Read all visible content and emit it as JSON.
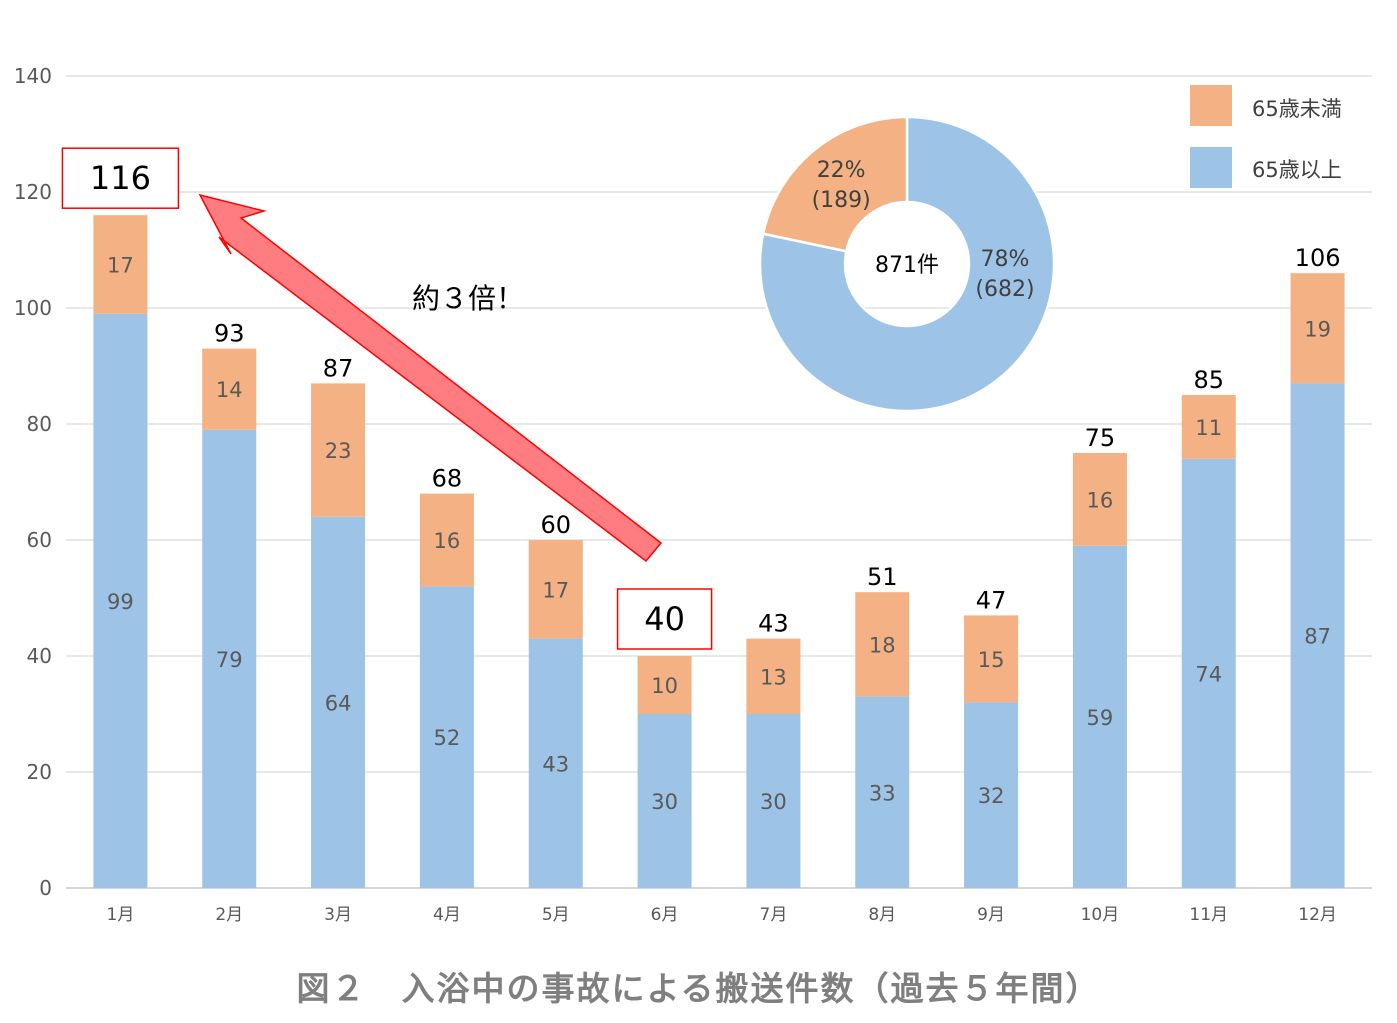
{
  "chart_data": {
    "type": "bar",
    "stacked": true,
    "title": "図２　入浴中の事故による搬送件数（過去５年間）",
    "categories": [
      "1月",
      "2月",
      "3月",
      "4月",
      "5月",
      "6月",
      "7月",
      "8月",
      "9月",
      "10月",
      "11月",
      "12月"
    ],
    "series": [
      {
        "name": "65歳以上",
        "color": "#9dc3e6",
        "values": [
          99,
          79,
          64,
          52,
          43,
          30,
          30,
          33,
          32,
          59,
          74,
          87
        ]
      },
      {
        "name": "65歳未満",
        "color": "#f4b183",
        "values": [
          17,
          14,
          23,
          16,
          17,
          10,
          13,
          18,
          15,
          16,
          11,
          19
        ]
      }
    ],
    "totals": [
      116,
      93,
      87,
      68,
      60,
      40,
      43,
      51,
      47,
      75,
      85,
      106
    ],
    "highlighted_categories": [
      "1月",
      "6月"
    ],
    "ylim": [
      0,
      140
    ],
    "yticks": [
      0,
      20,
      40,
      60,
      80,
      100,
      120,
      140
    ],
    "grid": true,
    "legend": {
      "placement": "top-right",
      "entries": [
        "65歳未満",
        "65歳以上"
      ]
    },
    "annotation": "約３倍！",
    "pie": {
      "center_label": "871件",
      "slices": [
        {
          "name": "65歳以上",
          "percent_label": "78%",
          "count_label": "(682)",
          "value": 682,
          "color": "#9dc3e6"
        },
        {
          "name": "65歳未満",
          "percent_label": "22%",
          "count_label": "(189)",
          "value": 189,
          "color": "#f4b183"
        }
      ]
    }
  }
}
